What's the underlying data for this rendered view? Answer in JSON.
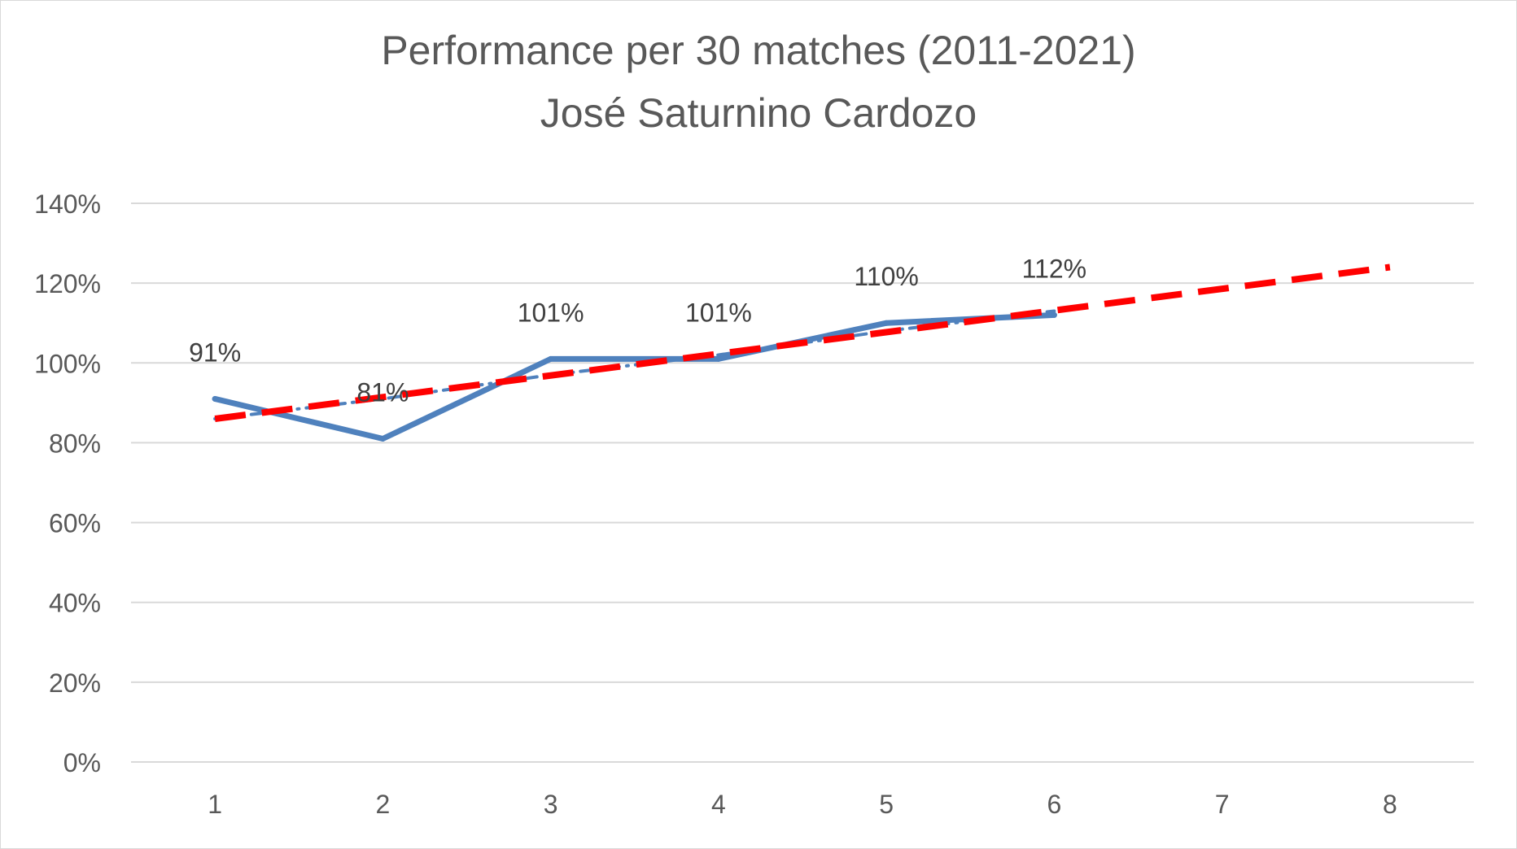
{
  "chart_data": {
    "type": "line",
    "title": "Performance per 30 matches (2011-2021)",
    "subtitle": "José Saturnino Cardozo",
    "xlabel": "",
    "ylabel": "",
    "x": [
      1,
      2,
      3,
      4,
      5,
      6,
      7,
      8
    ],
    "xlim": [
      0.5,
      8.5
    ],
    "ylim": [
      0,
      1.4
    ],
    "y_ticks": [
      0,
      0.2,
      0.4,
      0.6,
      0.8,
      1.0,
      1.2,
      1.4
    ],
    "y_tick_labels": [
      "0%",
      "20%",
      "40%",
      "60%",
      "80%",
      "100%",
      "120%",
      "140%"
    ],
    "x_tick_labels": [
      "1",
      "2",
      "3",
      "4",
      "5",
      "6",
      "7",
      "8"
    ],
    "grid": true,
    "legend": "none",
    "series": [
      {
        "x": [
          1,
          2,
          3,
          4,
          5,
          6
        ],
        "values": [
          0.91,
          0.81,
          1.01,
          1.01,
          1.1,
          1.12
        ],
        "data_labels": [
          "91%",
          "81%",
          "101%",
          "101%",
          "110%",
          "112%"
        ],
        "color": "#4f81bd",
        "style": "solid"
      }
    ],
    "trendlines": [
      {
        "kind": "moving-average",
        "x": [
          1,
          2,
          3,
          4,
          5,
          6
        ],
        "values": [
          0.86,
          0.91,
          0.97,
          1.02,
          1.08,
          1.13
        ],
        "color": "#4f81bd",
        "style": "dotted"
      },
      {
        "kind": "linear-forecast",
        "x": [
          1,
          8
        ],
        "values": [
          0.86,
          1.24
        ],
        "color": "#ff0000",
        "style": "dashed"
      }
    ],
    "colors": {
      "text": "#595959",
      "data_label": "#404040",
      "grid": "#d9d9d9",
      "series": "#4f81bd",
      "forecast": "#ff0000"
    }
  }
}
